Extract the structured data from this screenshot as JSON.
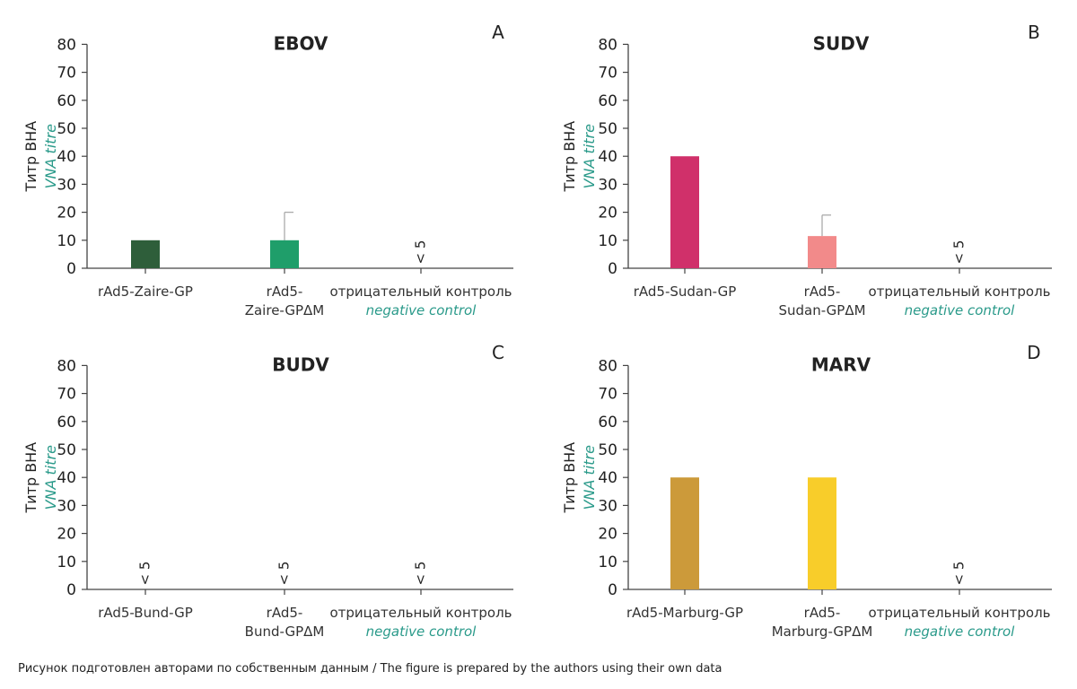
{
  "colors": {
    "ebov_1": "#2e5e3a",
    "ebov_2": "#1f9e6a",
    "sudv_1": "#d0306a",
    "sudv_2": "#f28a8a",
    "marv_1": "#cc9a3a",
    "marv_2": "#f8cd2a",
    "axis_en": "#2a9a8a",
    "errorbar": "#aaaaaa"
  },
  "chart_data": [
    {
      "type": "bar",
      "title": "EBOV",
      "panel": "A",
      "ylabel_ru": "Титр ВНА",
      "ylabel_en": "VNA titre",
      "ylim": [
        0,
        80
      ],
      "yticks": [
        "0",
        "10",
        "20",
        "30",
        "40",
        "50",
        "60",
        "70",
        "80"
      ],
      "categories": [
        {
          "lines": [
            "rAd5-Zaire-GP"
          ],
          "en": "",
          "value": 10,
          "error": null,
          "color": "#2e5e3a",
          "note": ""
        },
        {
          "lines": [
            "rAd5-",
            "Zaire-GPΔM"
          ],
          "en": "",
          "value": 10,
          "error": 20,
          "color": "#1f9e6a",
          "note": ""
        },
        {
          "lines": [
            "отрицательный контроль"
          ],
          "en": "negative control",
          "value": 0,
          "error": null,
          "color": "#999999",
          "note": "< 5"
        }
      ]
    },
    {
      "type": "bar",
      "title": "SUDV",
      "panel": "B",
      "ylabel_ru": "Титр ВНА",
      "ylabel_en": "VNA titre",
      "ylim": [
        0,
        80
      ],
      "yticks": [
        "0",
        "10",
        "20",
        "30",
        "40",
        "50",
        "60",
        "70",
        "80"
      ],
      "categories": [
        {
          "lines": [
            "rAd5-Sudan-GP"
          ],
          "en": "",
          "value": 40,
          "error": null,
          "color": "#d0306a",
          "note": ""
        },
        {
          "lines": [
            "rAd5-",
            "Sudan-GPΔM"
          ],
          "en": "",
          "value": 11.5,
          "error": 19,
          "color": "#f28a8a",
          "note": ""
        },
        {
          "lines": [
            "отрицательный контроль"
          ],
          "en": "negative control",
          "value": 0,
          "error": null,
          "color": "#999999",
          "note": "< 5"
        }
      ]
    },
    {
      "type": "bar",
      "title": "BUDV",
      "panel": "C",
      "ylabel_ru": "Титр ВНА",
      "ylabel_en": "VNA titre",
      "ylim": [
        0,
        80
      ],
      "yticks": [
        "0",
        "10",
        "20",
        "30",
        "40",
        "50",
        "60",
        "70",
        "80"
      ],
      "categories": [
        {
          "lines": [
            "rAd5-Bund-GP"
          ],
          "en": "",
          "value": 0,
          "error": null,
          "color": "#999999",
          "note": "< 5"
        },
        {
          "lines": [
            "rAd5-",
            "Bund-GPΔM"
          ],
          "en": "",
          "value": 0,
          "error": null,
          "color": "#999999",
          "note": "< 5"
        },
        {
          "lines": [
            "отрицательный контроль"
          ],
          "en": "negative control",
          "value": 0,
          "error": null,
          "color": "#999999",
          "note": "< 5"
        }
      ]
    },
    {
      "type": "bar",
      "title": "MARV",
      "panel": "D",
      "ylabel_ru": "Титр ВНА",
      "ylabel_en": "VNA titre",
      "ylim": [
        0,
        80
      ],
      "yticks": [
        "0",
        "10",
        "20",
        "30",
        "40",
        "50",
        "60",
        "70",
        "80"
      ],
      "categories": [
        {
          "lines": [
            "rAd5-Marburg-GP"
          ],
          "en": "",
          "value": 40,
          "error": null,
          "color": "#cc9a3a",
          "note": ""
        },
        {
          "lines": [
            "rAd5-",
            "Marburg-GPΔM"
          ],
          "en": "",
          "value": 40,
          "error": null,
          "color": "#f8cd2a",
          "note": ""
        },
        {
          "lines": [
            "отрицательный контроль"
          ],
          "en": "negative control",
          "value": 0,
          "error": null,
          "color": "#999999",
          "note": "< 5"
        }
      ]
    }
  ],
  "caption": "Рисунок подготовлен авторами по собственным данным / The figure is prepared by the authors using their own data"
}
